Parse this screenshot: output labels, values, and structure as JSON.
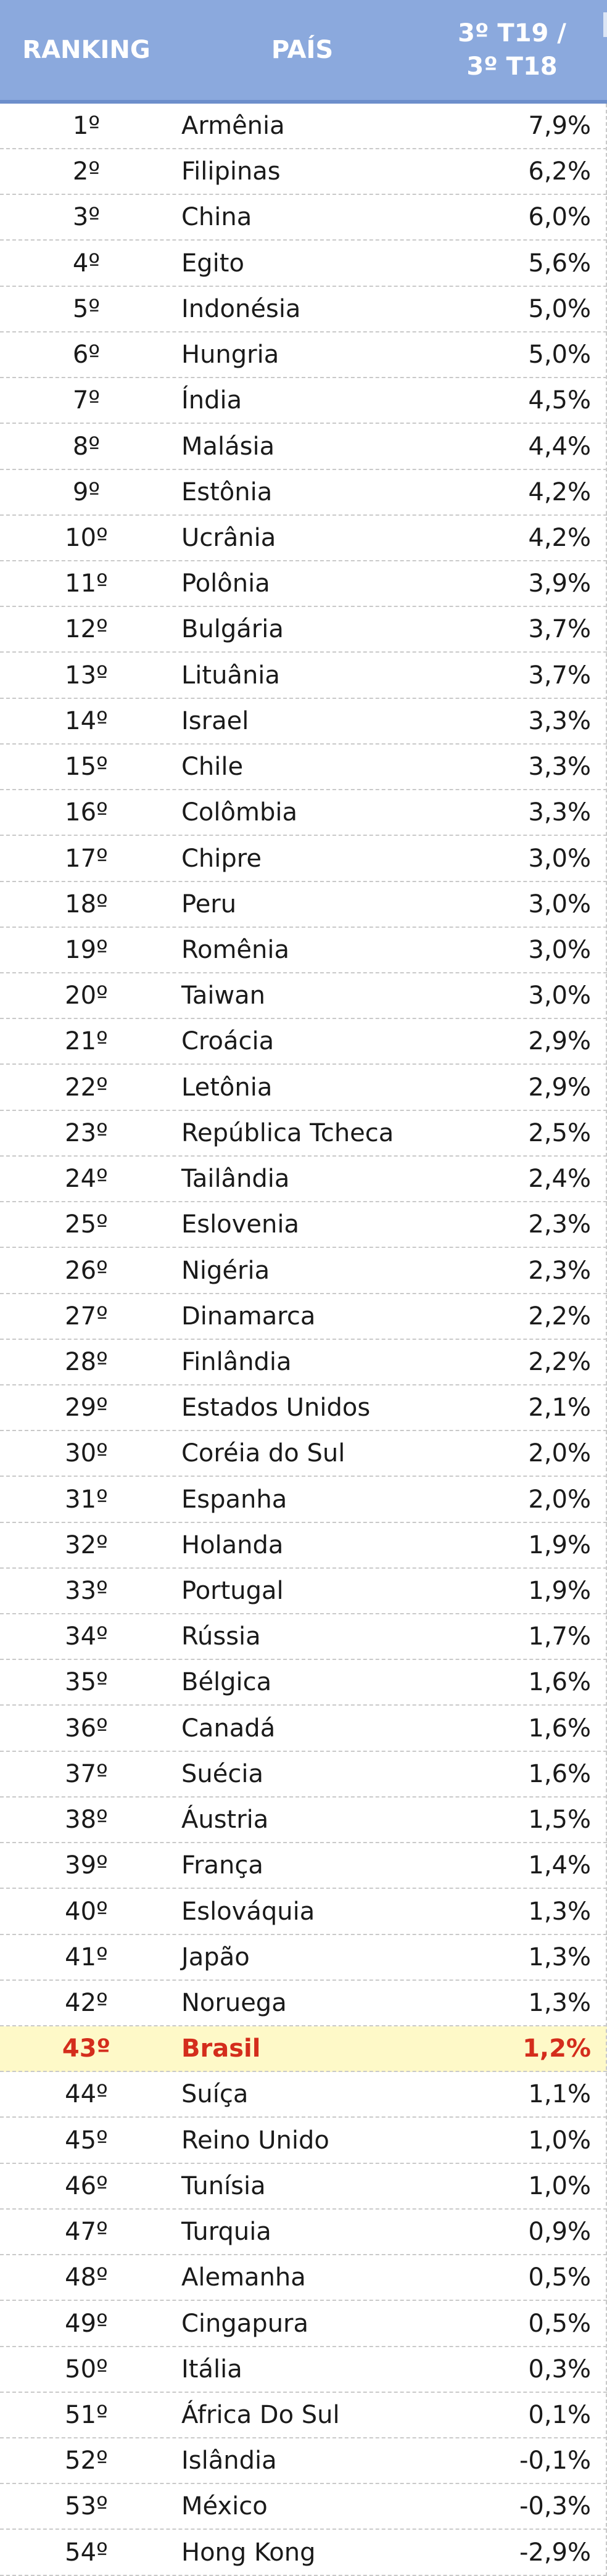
{
  "chart_data": {
    "type": "table",
    "columns": [
      "RANKING",
      "PAÍS",
      "3º T19 /\n3º T18"
    ],
    "highlight_color": "#d42d1c",
    "highlight_row_background": "#fef9c8",
    "header_background": "#8ba9dd",
    "rows": [
      {
        "rank": "1º",
        "country": "Armênia",
        "value": "7,9%"
      },
      {
        "rank": "2º",
        "country": "Filipinas",
        "value": "6,2%"
      },
      {
        "rank": "3º",
        "country": "China",
        "value": "6,0%"
      },
      {
        "rank": "4º",
        "country": "Egito",
        "value": "5,6%"
      },
      {
        "rank": "5º",
        "country": "Indonésia",
        "value": "5,0%"
      },
      {
        "rank": "6º",
        "country": "Hungria",
        "value": "5,0%"
      },
      {
        "rank": "7º",
        "country": "Índia",
        "value": "4,5%"
      },
      {
        "rank": "8º",
        "country": "Malásia",
        "value": "4,4%"
      },
      {
        "rank": "9º",
        "country": "Estônia",
        "value": "4,2%"
      },
      {
        "rank": "10º",
        "country": "Ucrânia",
        "value": "4,2%"
      },
      {
        "rank": "11º",
        "country": "Polônia",
        "value": "3,9%"
      },
      {
        "rank": "12º",
        "country": "Bulgária",
        "value": "3,7%"
      },
      {
        "rank": "13º",
        "country": "Lituânia",
        "value": "3,7%"
      },
      {
        "rank": "14º",
        "country": "Israel",
        "value": "3,3%"
      },
      {
        "rank": "15º",
        "country": "Chile",
        "value": "3,3%"
      },
      {
        "rank": "16º",
        "country": "Colômbia",
        "value": "3,3%"
      },
      {
        "rank": "17º",
        "country": "Chipre",
        "value": "3,0%"
      },
      {
        "rank": "18º",
        "country": "Peru",
        "value": "3,0%"
      },
      {
        "rank": "19º",
        "country": "Romênia",
        "value": "3,0%"
      },
      {
        "rank": "20º",
        "country": "Taiwan",
        "value": "3,0%"
      },
      {
        "rank": "21º",
        "country": "Croácia",
        "value": "2,9%"
      },
      {
        "rank": "22º",
        "country": "Letônia",
        "value": "2,9%"
      },
      {
        "rank": "23º",
        "country": "República Tcheca",
        "value": "2,5%"
      },
      {
        "rank": "24º",
        "country": "Tailândia",
        "value": "2,4%"
      },
      {
        "rank": "25º",
        "country": "Eslovenia",
        "value": "2,3%"
      },
      {
        "rank": "26º",
        "country": "Nigéria",
        "value": "2,3%"
      },
      {
        "rank": "27º",
        "country": "Dinamarca",
        "value": "2,2%"
      },
      {
        "rank": "28º",
        "country": "Finlândia",
        "value": "2,2%"
      },
      {
        "rank": "29º",
        "country": "Estados Unidos",
        "value": "2,1%"
      },
      {
        "rank": "30º",
        "country": "Coréia do Sul",
        "value": "2,0%"
      },
      {
        "rank": "31º",
        "country": "Espanha",
        "value": "2,0%"
      },
      {
        "rank": "32º",
        "country": "Holanda",
        "value": "1,9%"
      },
      {
        "rank": "33º",
        "country": "Portugal",
        "value": "1,9%"
      },
      {
        "rank": "34º",
        "country": "Rússia",
        "value": "1,7%"
      },
      {
        "rank": "35º",
        "country": "Bélgica",
        "value": "1,6%"
      },
      {
        "rank": "36º",
        "country": "Canadá",
        "value": "1,6%"
      },
      {
        "rank": "37º",
        "country": "Suécia",
        "value": "1,6%"
      },
      {
        "rank": "38º",
        "country": "Áustria",
        "value": "1,5%"
      },
      {
        "rank": "39º",
        "country": "França",
        "value": "1,4%"
      },
      {
        "rank": "40º",
        "country": "Eslováquia",
        "value": "1,3%"
      },
      {
        "rank": "41º",
        "country": "Japão",
        "value": "1,3%"
      },
      {
        "rank": "42º",
        "country": "Noruega",
        "value": "1,3%"
      },
      {
        "rank": "43º",
        "country": "Brasil",
        "value": "1,2%",
        "highlight": true
      },
      {
        "rank": "44º",
        "country": "Suíça",
        "value": "1,1%"
      },
      {
        "rank": "45º",
        "country": "Reino Unido",
        "value": "1,0%"
      },
      {
        "rank": "46º",
        "country": "Tunísia",
        "value": "1,0%"
      },
      {
        "rank": "47º",
        "country": "Turquia",
        "value": "0,9%"
      },
      {
        "rank": "48º",
        "country": "Alemanha",
        "value": "0,5%"
      },
      {
        "rank": "49º",
        "country": "Cingapura",
        "value": "0,5%"
      },
      {
        "rank": "50º",
        "country": "Itália",
        "value": "0,3%"
      },
      {
        "rank": "51º",
        "country": "África Do Sul",
        "value": "0,1%"
      },
      {
        "rank": "52º",
        "country": "Islândia",
        "value": "-0,1%"
      },
      {
        "rank": "53º",
        "country": "México",
        "value": "-0,3%"
      },
      {
        "rank": "54º",
        "country": "Hong Kong",
        "value": "-2,9%"
      }
    ]
  }
}
